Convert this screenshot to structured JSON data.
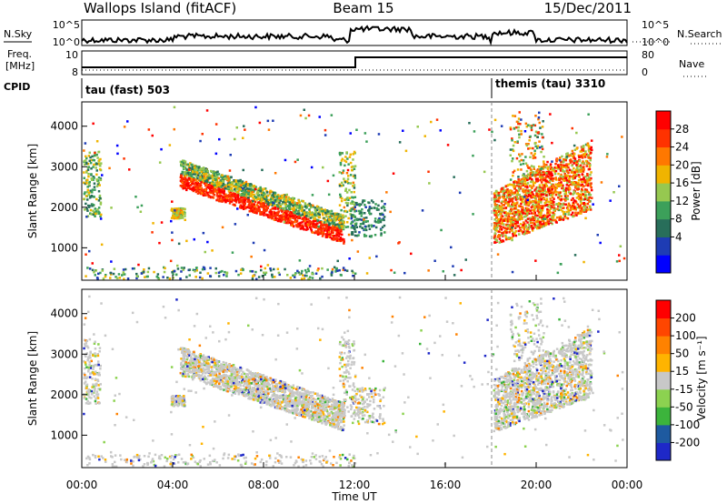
{
  "header": {
    "site": "Wallops Island (fitACF)",
    "beam": "Beam 15",
    "date": "15/Dec/2011"
  },
  "strip1": {
    "left_label": "N.Sky",
    "right_label": "N.Search",
    "left_ticks": [
      "10^5",
      "10^0"
    ],
    "right_ticks": [
      "10^5",
      "10^0"
    ]
  },
  "strip2": {
    "left_label_1": "Freq.",
    "left_label_2": "[MHz]",
    "right_label": "Nave",
    "left_ticks": [
      "10",
      "8"
    ],
    "right_ticks": [
      "80",
      "0"
    ]
  },
  "cpid": {
    "label": "CPID",
    "modes": [
      {
        "name": "tau (fast) 503",
        "start_hour": 0
      },
      {
        "name": "themis (tau) 3310",
        "start_hour": 18
      }
    ]
  },
  "chart_data": [
    {
      "type": "heatmap",
      "ylabel": "Slant Range [km]",
      "yticks": [
        1000,
        2000,
        3000,
        4000
      ],
      "ylim": [
        200,
        4600
      ],
      "colorbar": {
        "label": "Power [dB]",
        "ticks": [
          28,
          24,
          20,
          16,
          12,
          8,
          4
        ],
        "range": [
          0,
          32
        ],
        "colors": [
          "#0000ff",
          "#1e3cb4",
          "#286e5a",
          "#3ca05a",
          "#96c850",
          "#f0b400",
          "#ff7800",
          "#ff3200",
          "#ff0000"
        ]
      }
    },
    {
      "type": "heatmap",
      "ylabel": "Slant Range [km]",
      "yticks": [
        1000,
        2000,
        3000,
        4000
      ],
      "ylim": [
        200,
        4600
      ],
      "colorbar": {
        "label": "Velocity [m s⁻¹]",
        "ticks": [
          200,
          100,
          50,
          15,
          -15,
          -50,
          -100,
          -200
        ],
        "colors": [
          "#1e28c8",
          "#1e5aa0",
          "#3cb43c",
          "#8cd250",
          "#c8c8c8",
          "#ffb400",
          "#ff8200",
          "#ff4600",
          "#ff0000"
        ]
      }
    }
  ],
  "xaxis": {
    "label": "Time UT",
    "ticks": [
      "00:00",
      "04:00",
      "08:00",
      "12:00",
      "16:00",
      "20:00",
      "00:00"
    ],
    "xlim": [
      0,
      24
    ]
  }
}
